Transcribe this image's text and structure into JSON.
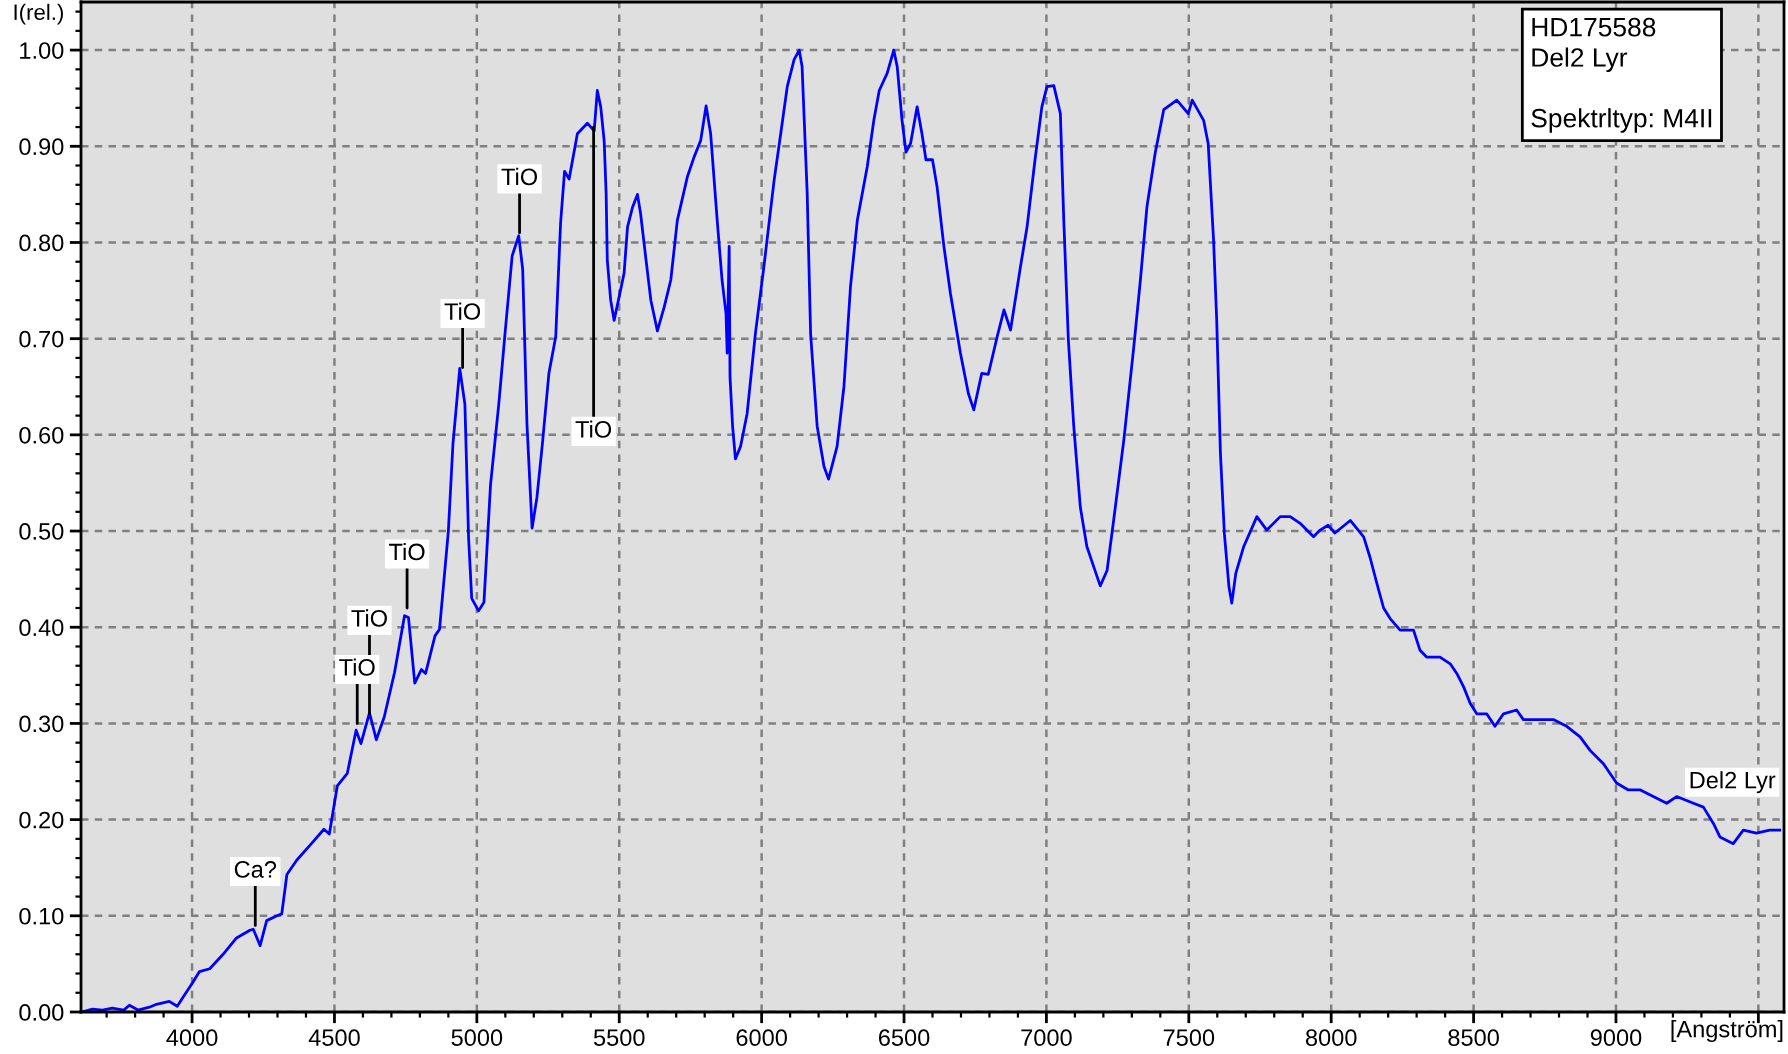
{
  "chart_data": {
    "type": "line",
    "xlabel": "[Angström]",
    "ylabel": "I(rel.)",
    "x": [
      3613,
      3650,
      3685,
      3720,
      3760,
      3780,
      3810,
      3850,
      3875,
      3920,
      3948,
      3970,
      4003,
      4026,
      4062,
      4109,
      4156,
      4203,
      4215,
      4239,
      4262,
      4298,
      4315,
      4333,
      4368,
      4416,
      4463,
      4482,
      4510,
      4545,
      4576,
      4593,
      4623,
      4647,
      4675,
      4711,
      4746,
      4760,
      4782,
      4805,
      4820,
      4853,
      4869,
      4900,
      4916,
      4940,
      4958,
      4971,
      4982,
      5006,
      5025,
      5048,
      5077,
      5100,
      5124,
      5147,
      5161,
      5176,
      5194,
      5211,
      5230,
      5253,
      5277,
      5294,
      5308,
      5324,
      5353,
      5388,
      5412,
      5423,
      5435,
      5447,
      5454,
      5458,
      5470,
      5482,
      5500,
      5517,
      5529,
      5547,
      5564,
      5575,
      5594,
      5611,
      5634,
      5658,
      5681,
      5704,
      5739,
      5763,
      5786,
      5805,
      5821,
      5844,
      5861,
      5875,
      5879,
      5886,
      5889,
      5898,
      5908,
      5926,
      5949,
      5978,
      6008,
      6044,
      6067,
      6090,
      6114,
      6132,
      6142,
      6160,
      6172,
      6195,
      6219,
      6235,
      6265,
      6289,
      6312,
      6336,
      6371,
      6394,
      6413,
      6441,
      6464,
      6476,
      6493,
      6507,
      6523,
      6546,
      6563,
      6577,
      6600,
      6616,
      6640,
      6663,
      6698,
      6726,
      6745,
      6773,
      6796,
      6827,
      6851,
      6874,
      6909,
      6932,
      6960,
      6984,
      7002,
      7026,
      7049,
      7061,
      7077,
      7096,
      7119,
      7142,
      7166,
      7189,
      7213,
      7236,
      7272,
      7307,
      7330,
      7353,
      7382,
      7412,
      7458,
      7498,
      7512,
      7552,
      7568,
      7587,
      7598,
      7611,
      7625,
      7641,
      7651,
      7665,
      7693,
      7739,
      7774,
      7821,
      7856,
      7891,
      7938,
      7961,
      7989,
      8013,
      8067,
      8114,
      8137,
      8160,
      8184,
      8207,
      8242,
      8289,
      8312,
      8335,
      8382,
      8418,
      8441,
      8465,
      8488,
      8511,
      8546,
      8575,
      8605,
      8651,
      8675,
      8721,
      8780,
      8827,
      8874,
      8909,
      8956,
      9002,
      9042,
      9084,
      9131,
      9178,
      9213,
      9272,
      9307,
      9342,
      9365,
      9412,
      9447,
      9493,
      9540,
      9575
    ],
    "series": [
      {
        "name": "Del2 Lyr",
        "color": "#0000ff",
        "values": [
          0.0,
          0.003,
          0.002,
          0.004,
          0.002,
          0.007,
          0.002,
          0.005,
          0.008,
          0.011,
          0.006,
          0.016,
          0.031,
          0.042,
          0.045,
          0.06,
          0.077,
          0.085,
          0.086,
          0.069,
          0.095,
          0.1,
          0.102,
          0.143,
          0.158,
          0.174,
          0.19,
          0.185,
          0.235,
          0.248,
          0.293,
          0.279,
          0.311,
          0.283,
          0.307,
          0.353,
          0.412,
          0.41,
          0.342,
          0.356,
          0.352,
          0.391,
          0.398,
          0.5,
          0.59,
          0.669,
          0.632,
          0.493,
          0.43,
          0.417,
          0.426,
          0.548,
          0.632,
          0.709,
          0.786,
          0.807,
          0.772,
          0.611,
          0.503,
          0.535,
          0.59,
          0.664,
          0.702,
          0.82,
          0.874,
          0.866,
          0.913,
          0.924,
          0.916,
          0.958,
          0.941,
          0.906,
          0.851,
          0.782,
          0.74,
          0.719,
          0.744,
          0.768,
          0.816,
          0.837,
          0.85,
          0.83,
          0.782,
          0.74,
          0.708,
          0.733,
          0.761,
          0.823,
          0.868,
          0.889,
          0.906,
          0.942,
          0.913,
          0.823,
          0.761,
          0.726,
          0.685,
          0.796,
          0.66,
          0.609,
          0.575,
          0.588,
          0.622,
          0.705,
          0.775,
          0.865,
          0.913,
          0.962,
          0.99,
          1.0,
          0.983,
          0.851,
          0.705,
          0.609,
          0.567,
          0.554,
          0.588,
          0.65,
          0.754,
          0.823,
          0.879,
          0.927,
          0.958,
          0.976,
          1.0,
          0.983,
          0.927,
          0.894,
          0.903,
          0.941,
          0.913,
          0.886,
          0.886,
          0.858,
          0.796,
          0.747,
          0.685,
          0.643,
          0.626,
          0.664,
          0.663,
          0.702,
          0.73,
          0.709,
          0.775,
          0.816,
          0.886,
          0.941,
          0.962,
          0.963,
          0.934,
          0.823,
          0.699,
          0.609,
          0.525,
          0.484,
          0.463,
          0.443,
          0.459,
          0.511,
          0.595,
          0.692,
          0.761,
          0.837,
          0.893,
          0.938,
          0.948,
          0.934,
          0.948,
          0.927,
          0.903,
          0.802,
          0.719,
          0.581,
          0.497,
          0.442,
          0.425,
          0.456,
          0.484,
          0.515,
          0.501,
          0.515,
          0.515,
          0.508,
          0.494,
          0.501,
          0.506,
          0.498,
          0.511,
          0.494,
          0.472,
          0.446,
          0.42,
          0.409,
          0.397,
          0.397,
          0.376,
          0.369,
          0.369,
          0.362,
          0.352,
          0.338,
          0.321,
          0.31,
          0.31,
          0.297,
          0.31,
          0.314,
          0.304,
          0.304,
          0.304,
          0.297,
          0.286,
          0.272,
          0.258,
          0.238,
          0.231,
          0.231,
          0.224,
          0.217,
          0.224,
          0.217,
          0.213,
          0.196,
          0.182,
          0.175,
          0.189,
          0.186,
          0.189,
          0.189
        ]
      }
    ],
    "xlim": [
      3610,
      9590
    ],
    "ylim": [
      0,
      1.05
    ],
    "xticks": [
      4000,
      4500,
      5000,
      5500,
      6000,
      6500,
      7000,
      7500,
      8000,
      8500,
      9000,
      {
        "value": 9500,
        "label": null
      }
    ],
    "yticks": [
      {
        "value": 0,
        "label": "0.00"
      },
      {
        "value": 0.1,
        "label": "0.10"
      },
      {
        "value": 0.2,
        "label": "0.20"
      },
      {
        "value": 0.3,
        "label": "0.30"
      },
      {
        "value": 0.4,
        "label": "0.40"
      },
      {
        "value": 0.5,
        "label": "0.50"
      },
      {
        "value": 0.6,
        "label": "0.60"
      },
      {
        "value": 0.7,
        "label": "0.70"
      },
      {
        "value": 0.8,
        "label": "0.80"
      },
      {
        "value": 0.9,
        "label": "0.90"
      },
      {
        "value": 1.0,
        "label": "1.00"
      }
    ],
    "grid": true,
    "marker": "none",
    "line_style": "solid",
    "annotations": [
      "HD175588\nDel2 Lyr\n\nSpektrltyp: M4II",
      {
        "text": "Ca?",
        "x": 4222,
        "y": 0.09
      },
      {
        "text": "TiO",
        "x": 4580,
        "y": 0.3
      },
      {
        "text": "TiO",
        "x": 4623,
        "y": 0.31
      },
      {
        "text": "TiO",
        "x": 4755,
        "y": 0.42
      },
      {
        "text": "TiO",
        "x": 4950,
        "y": 0.67
      },
      {
        "text": "TiO",
        "x": 5150,
        "y": 0.81
      },
      {
        "text": "TiO",
        "x": 5410,
        "y": 0.92
      }
    ]
  }
}
